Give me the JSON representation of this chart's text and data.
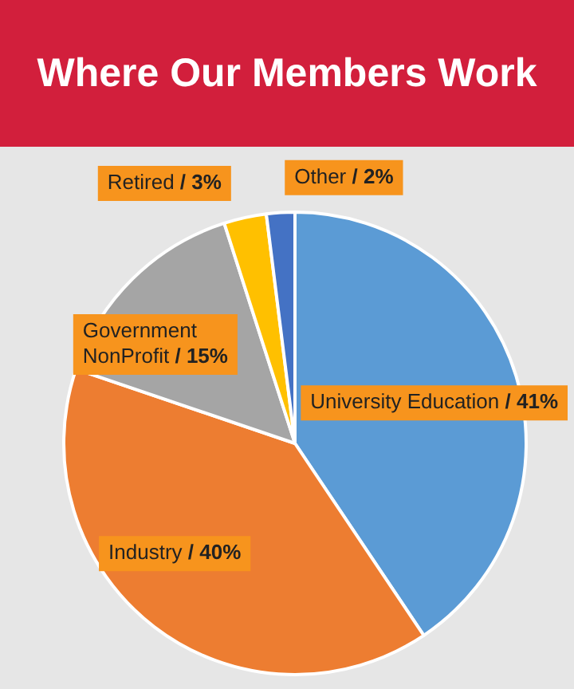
{
  "chart_data": {
    "type": "pie",
    "title": "Where Our Members Work",
    "categories": [
      "University Education",
      "Industry",
      "Government NonProfit",
      "Retired",
      "Other"
    ],
    "values": [
      41,
      40,
      15,
      3,
      2
    ],
    "colors": [
      "#5b9bd5",
      "#ed7d31",
      "#a5a5a5",
      "#ffc000",
      "#4472c4"
    ],
    "value_labels": [
      "/ 41%",
      "/ 40%",
      "/ 15%",
      "/ 3%",
      "/ 2%"
    ],
    "legend": false
  }
}
